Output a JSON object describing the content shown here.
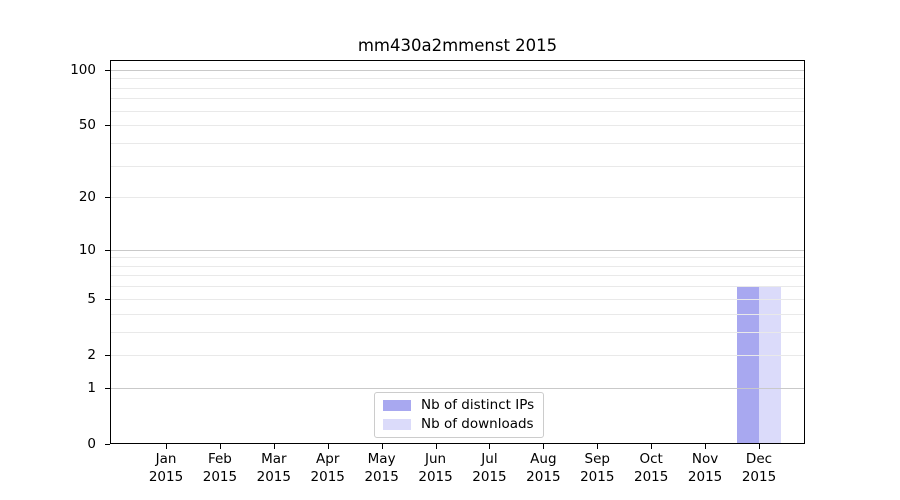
{
  "chart_data": {
    "type": "bar",
    "title": "mm430a2mmenst 2015",
    "categories": [
      "Jan",
      "Feb",
      "Mar",
      "Apr",
      "May",
      "Jun",
      "Jul",
      "Aug",
      "Sep",
      "Oct",
      "Nov",
      "Dec"
    ],
    "category_year": "2015",
    "series": [
      {
        "name": "Nb of distinct IPs",
        "color": "#a8a8f0",
        "values": [
          0,
          0,
          0,
          0,
          0,
          0,
          0,
          0,
          0,
          0,
          0,
          6
        ]
      },
      {
        "name": "Nb of downloads",
        "color": "#dbdbfa",
        "values": [
          0,
          0,
          0,
          0,
          0,
          0,
          0,
          0,
          0,
          0,
          0,
          6
        ]
      }
    ],
    "xlabel": "",
    "ylabel": "",
    "yscale": "log1p",
    "ylim": [
      0,
      113
    ],
    "yticks": [
      0,
      1,
      2,
      5,
      10,
      20,
      50,
      100
    ],
    "yticks_minor": [
      3,
      4,
      6,
      7,
      8,
      9,
      30,
      40,
      60,
      70,
      80,
      90
    ],
    "major_gridline_values": [
      1,
      10,
      100
    ],
    "grid": true,
    "legend_position": "lower center",
    "colors": {
      "major_grid": "#c9c9c9",
      "minor_grid": "#e9e9e9",
      "axis": "#000000",
      "text": "#000000"
    }
  }
}
